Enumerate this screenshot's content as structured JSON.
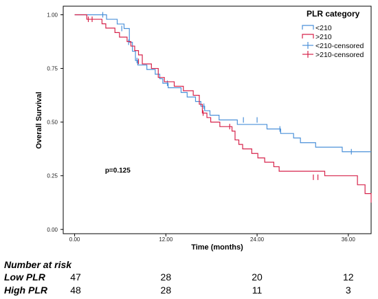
{
  "chart_data": {
    "type": "line",
    "subtype": "kaplan-meier step",
    "xlabel": "Time (months)",
    "ylabel": "Overall Survival",
    "xlim": [
      -1.5,
      39
    ],
    "ylim": [
      -0.02,
      1.04
    ],
    "x_ticks": [
      "0.00",
      "12.00",
      "24.00",
      "36.00"
    ],
    "x_tick_values": [
      0,
      12,
      24,
      36
    ],
    "y_ticks": [
      "0.00",
      "0.25",
      "0.50",
      "0.75",
      "1.00"
    ],
    "y_tick_values": [
      0,
      0.25,
      0.5,
      0.75,
      1.0
    ],
    "grid": false,
    "legend": {
      "title": "PLR category",
      "placement": "top-right",
      "entries": [
        {
          "label": "<210",
          "kind": "step",
          "color": "#4a90d9"
        },
        {
          "label": ">210",
          "kind": "step",
          "color": "#d6224a"
        },
        {
          "label": "<210-censored",
          "kind": "censor",
          "color": "#4a90d9"
        },
        {
          "label": ">210-censored",
          "kind": "censor",
          "color": "#d6224a"
        }
      ]
    },
    "annotation": "p=0.125",
    "annotation_pos": [
      4,
      0.265
    ],
    "series": [
      {
        "name": "<210",
        "color": "#4a90d9",
        "steps": [
          [
            0,
            1.0
          ],
          [
            4.2,
            0.979
          ],
          [
            5.6,
            0.957
          ],
          [
            6.5,
            0.936
          ],
          [
            7.2,
            0.872
          ],
          [
            7.6,
            0.83
          ],
          [
            8.0,
            0.787
          ],
          [
            8.3,
            0.766
          ],
          [
            9.5,
            0.745
          ],
          [
            10.6,
            0.723
          ],
          [
            11.2,
            0.702
          ],
          [
            11.6,
            0.681
          ],
          [
            12.3,
            0.66
          ],
          [
            14.0,
            0.638
          ],
          [
            14.8,
            0.617
          ],
          [
            15.9,
            0.596
          ],
          [
            16.6,
            0.574
          ],
          [
            17.1,
            0.553
          ],
          [
            17.8,
            0.532
          ],
          [
            19.0,
            0.51
          ],
          [
            21.4,
            0.489
          ],
          [
            25.3,
            0.468
          ],
          [
            27.1,
            0.447
          ],
          [
            28.8,
            0.426
          ],
          [
            29.7,
            0.404
          ],
          [
            31.7,
            0.383
          ],
          [
            35.2,
            0.362
          ],
          [
            39.0,
            0.362
          ]
        ],
        "censored": [
          [
            3.7,
            1.0
          ],
          [
            6.2,
            0.936
          ],
          [
            7.1,
            0.872
          ],
          [
            8.2,
            0.787
          ],
          [
            12.2,
            0.681
          ],
          [
            17.0,
            0.574
          ],
          [
            22.2,
            0.51
          ],
          [
            24.0,
            0.51
          ],
          [
            27.0,
            0.468
          ],
          [
            36.4,
            0.362
          ]
        ]
      },
      {
        "name": ">210",
        "color": "#d6224a",
        "steps": [
          [
            0,
            1.0
          ],
          [
            1.6,
            0.979
          ],
          [
            3.6,
            0.958
          ],
          [
            4.1,
            0.938
          ],
          [
            5.3,
            0.917
          ],
          [
            5.9,
            0.896
          ],
          [
            6.9,
            0.875
          ],
          [
            7.4,
            0.854
          ],
          [
            7.9,
            0.833
          ],
          [
            8.4,
            0.813
          ],
          [
            8.9,
            0.771
          ],
          [
            10.1,
            0.75
          ],
          [
            11.0,
            0.708
          ],
          [
            11.8,
            0.688
          ],
          [
            13.1,
            0.667
          ],
          [
            14.3,
            0.646
          ],
          [
            15.6,
            0.625
          ],
          [
            16.4,
            0.583
          ],
          [
            16.8,
            0.542
          ],
          [
            17.4,
            0.521
          ],
          [
            17.9,
            0.5
          ],
          [
            19.1,
            0.479
          ],
          [
            20.7,
            0.458
          ],
          [
            21.1,
            0.417
          ],
          [
            21.6,
            0.396
          ],
          [
            22.1,
            0.375
          ],
          [
            23.3,
            0.354
          ],
          [
            24.1,
            0.333
          ],
          [
            25.0,
            0.313
          ],
          [
            26.2,
            0.292
          ],
          [
            26.9,
            0.271
          ],
          [
            32.9,
            0.25
          ],
          [
            37.2,
            0.208
          ],
          [
            38.2,
            0.167
          ],
          [
            39.0,
            0.125
          ]
        ],
        "censored": [
          [
            1.8,
            0.979
          ],
          [
            2.3,
            0.979
          ],
          [
            8.4,
            0.783
          ],
          [
            16.9,
            0.542
          ],
          [
            20.4,
            0.479
          ],
          [
            31.4,
            0.243
          ],
          [
            32.0,
            0.243
          ]
        ]
      }
    ],
    "risk_table": {
      "title": "Number at risk",
      "columns_x": [
        0,
        12,
        24,
        36
      ],
      "rows": [
        {
          "label": "Low PLR",
          "values": [
            "47",
            "28",
            "20",
            "12"
          ]
        },
        {
          "label": "High PLR",
          "values": [
            "48",
            "28",
            "11",
            "3"
          ]
        }
      ]
    }
  }
}
